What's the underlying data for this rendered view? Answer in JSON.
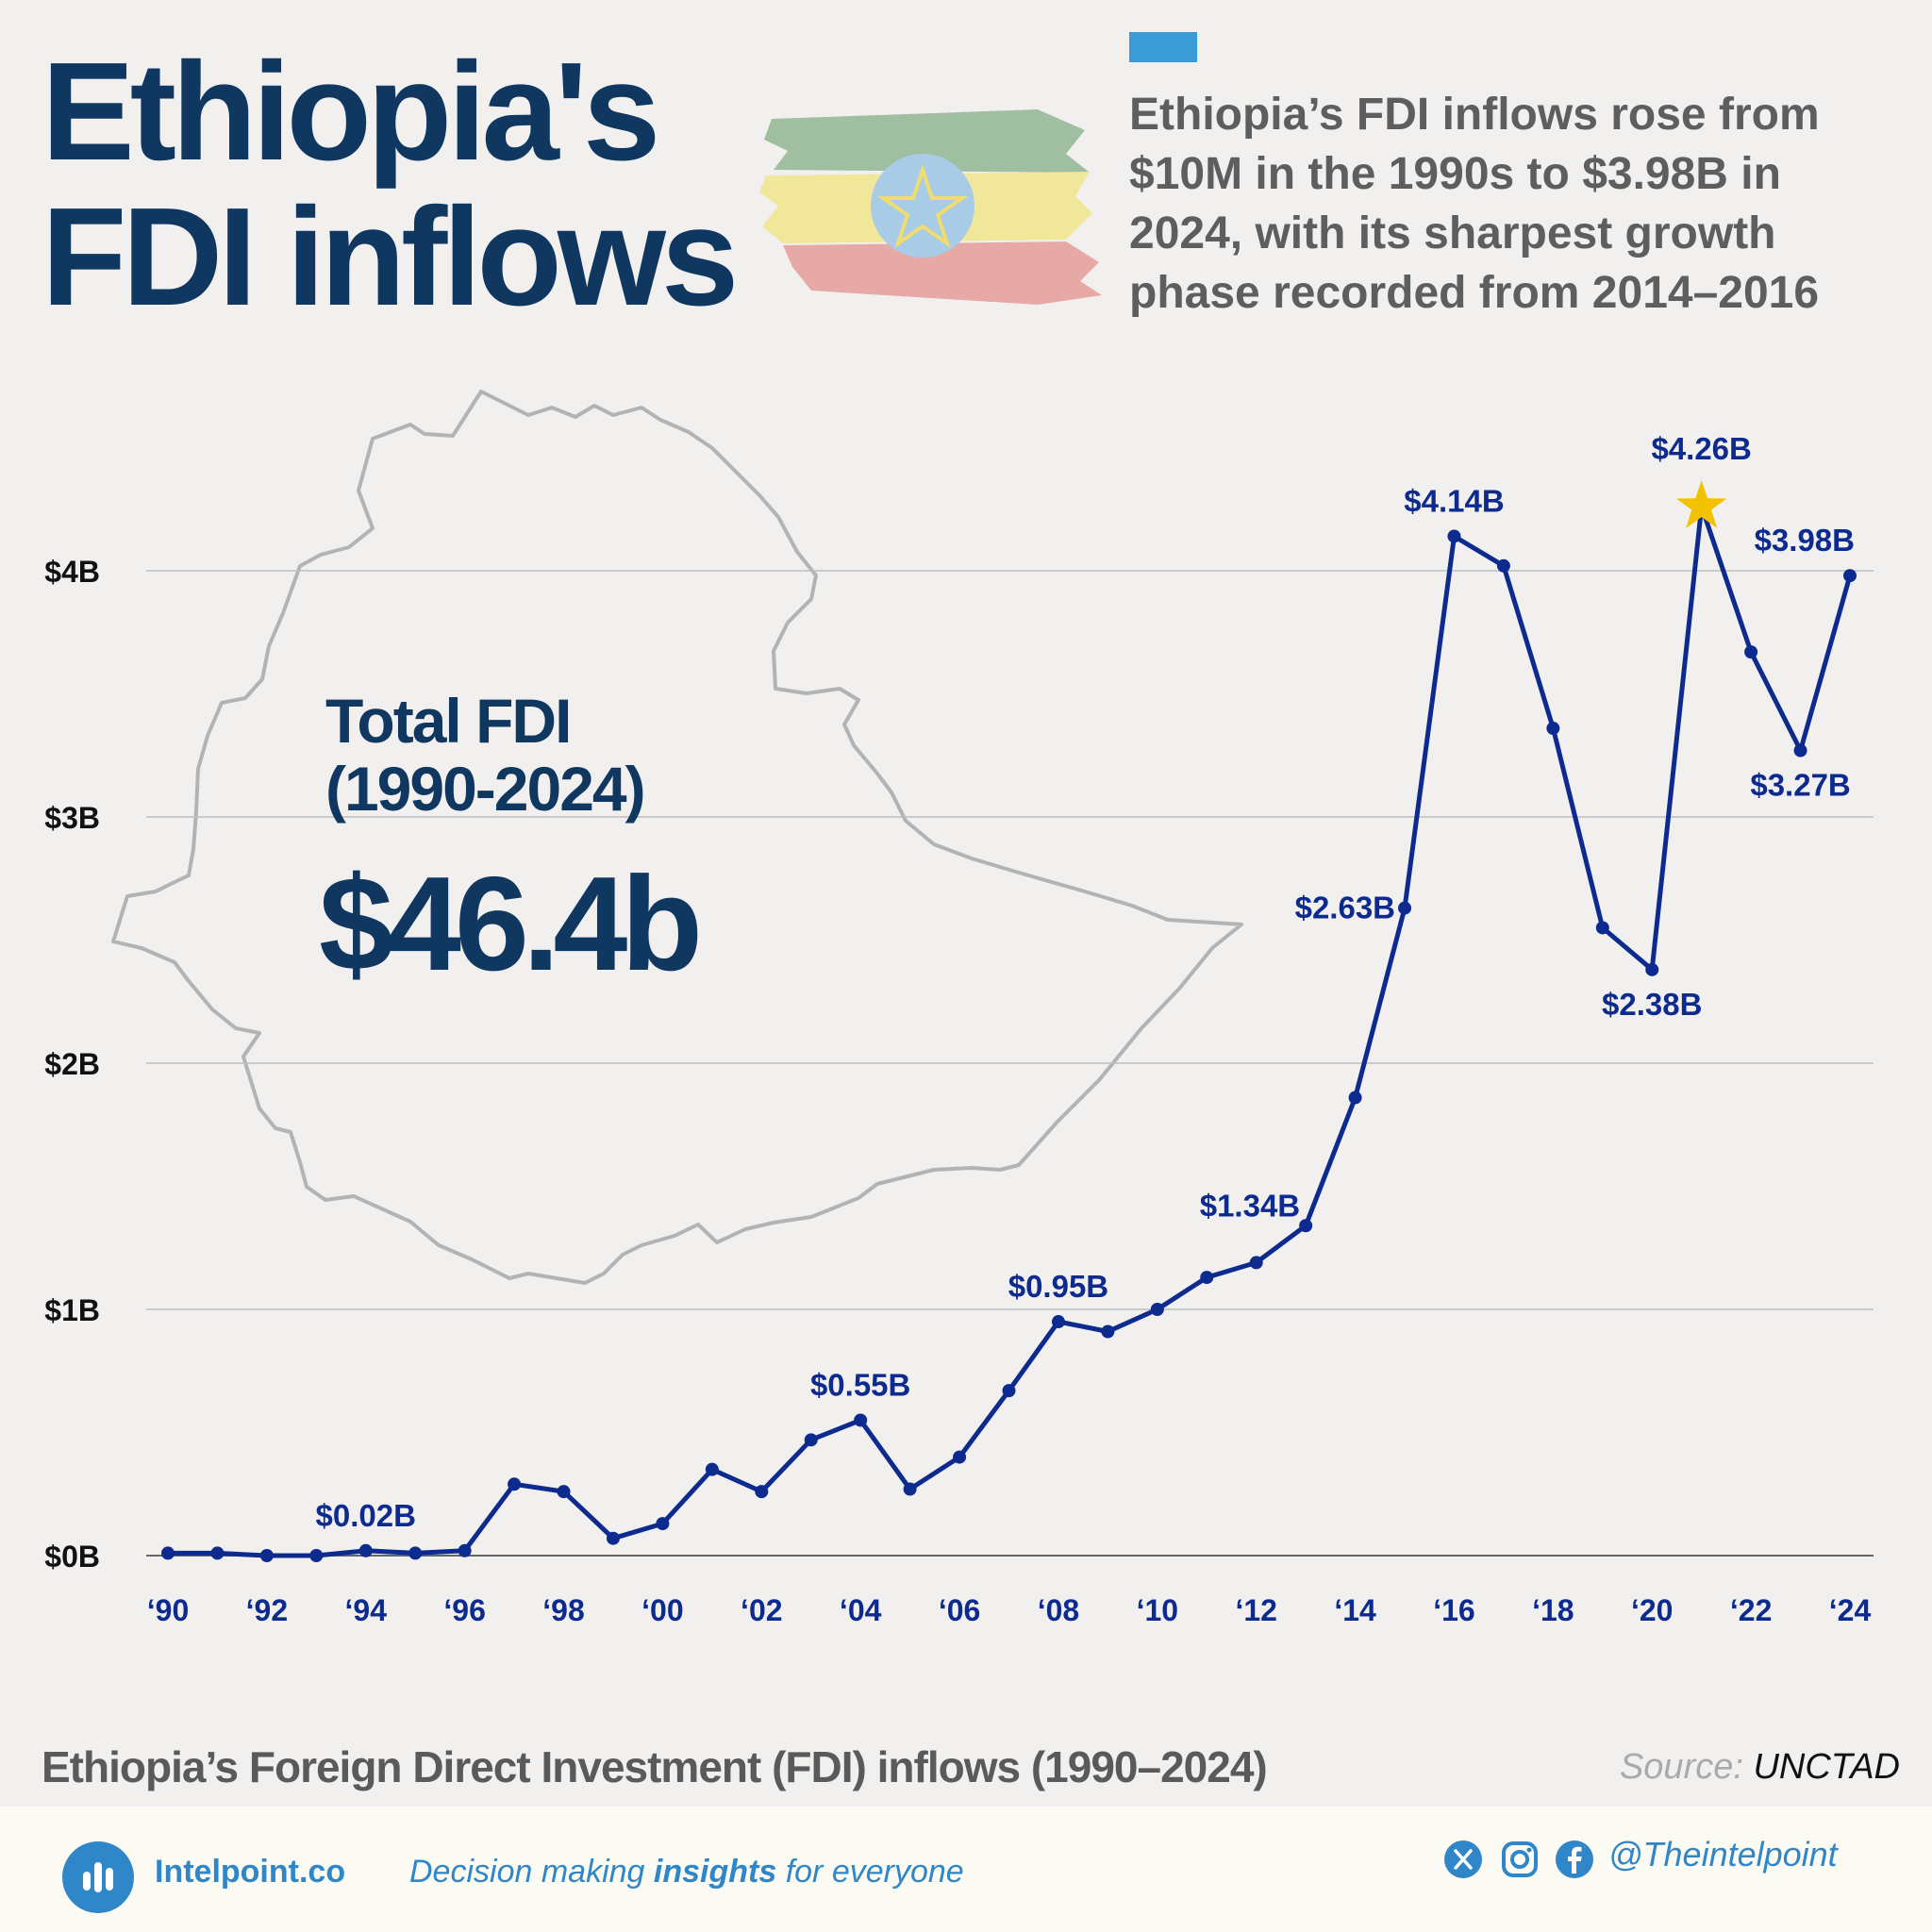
{
  "header": {
    "title_line1": "Ethiopia's",
    "title_line2": "FDI inflows",
    "summary": "Ethiopia’s FDI inflows rose from $10M in the 1990s to $3.98B in 2024, with its sharpest growth phase recorded from 2014–2016"
  },
  "total": {
    "label_line1": "Total FDI",
    "label_line2": "(1990-2024)",
    "value": "$46.4b"
  },
  "chart_data": {
    "type": "line",
    "title": "Ethiopia’s Foreign Direct Investment (FDI) inflows (1990–2024)",
    "ylim": [
      0,
      4.5
    ],
    "yticks": [
      {
        "value": 0,
        "label": "$0B"
      },
      {
        "value": 1,
        "label": "$1B"
      },
      {
        "value": 2,
        "label": "$2B"
      },
      {
        "value": 3,
        "label": "$3B"
      },
      {
        "value": 4,
        "label": "$4B"
      }
    ],
    "grid": true,
    "x": [
      1990,
      1991,
      1992,
      1993,
      1994,
      1995,
      1996,
      1997,
      1998,
      1999,
      2000,
      2001,
      2002,
      2003,
      2004,
      2005,
      2006,
      2007,
      2008,
      2009,
      2010,
      2011,
      2012,
      2013,
      2014,
      2015,
      2016,
      2017,
      2018,
      2019,
      2020,
      2021,
      2022,
      2023,
      2024
    ],
    "xtick_labels": [
      "‘90",
      "‘92",
      "‘94",
      "‘96",
      "‘98",
      "‘00",
      "‘02",
      "‘04",
      "‘06",
      "‘08",
      "‘10",
      "‘12",
      "‘14",
      "‘16",
      "‘18",
      "‘20",
      "‘22",
      "‘24"
    ],
    "xtick_years": [
      1990,
      1992,
      1994,
      1996,
      1998,
      2000,
      2002,
      2004,
      2006,
      2008,
      2010,
      2012,
      2014,
      2016,
      2018,
      2020,
      2022,
      2024
    ],
    "series": [
      {
        "values": [
          0.01,
          0.01,
          0.0,
          0.0,
          0.02,
          0.01,
          0.02,
          0.29,
          0.26,
          0.07,
          0.13,
          0.35,
          0.26,
          0.47,
          0.55,
          0.27,
          0.4,
          0.67,
          0.95,
          0.91,
          1.0,
          1.13,
          1.19,
          1.34,
          1.86,
          2.63,
          4.14,
          4.02,
          3.36,
          2.55,
          2.38,
          4.26,
          3.67,
          3.27,
          3.98
        ],
        "color": "#0d2a8f"
      }
    ],
    "annotations": [
      {
        "year": 1994,
        "value": 0.02,
        "label": "$0.02B",
        "pos": "above"
      },
      {
        "year": 2004,
        "value": 0.55,
        "label": "$0.55B",
        "pos": "above"
      },
      {
        "year": 2008,
        "value": 0.95,
        "label": "$0.95B",
        "pos": "above"
      },
      {
        "year": 2013,
        "value": 1.34,
        "label": "$1.34B",
        "pos": "above-left"
      },
      {
        "year": 2015,
        "value": 2.63,
        "label": "$2.63B",
        "pos": "left"
      },
      {
        "year": 2016,
        "value": 4.14,
        "label": "$4.14B",
        "pos": "above"
      },
      {
        "year": 2020,
        "value": 2.38,
        "label": "$2.38B",
        "pos": "below"
      },
      {
        "year": 2021,
        "value": 4.26,
        "label": "$4.26B",
        "pos": "above-star"
      },
      {
        "year": 2023,
        "value": 3.27,
        "label": "$3.27B",
        "pos": "below"
      },
      {
        "year": 2024,
        "value": 3.98,
        "label": "$3.98B",
        "pos": "above"
      }
    ],
    "highlight": {
      "year": 2021,
      "marker": "star",
      "color": "#f2c200"
    }
  },
  "source": {
    "prefix": "Source:",
    "name": "UNCTAD"
  },
  "footer": {
    "brand": "Intelpoint.co",
    "tagline_pre": "Decision making",
    "tagline_bold": "insights",
    "tagline_post": "for everyone",
    "handle": "@Theintelpoint",
    "icons": [
      "x-icon",
      "instagram-icon",
      "facebook-icon"
    ]
  },
  "colors": {
    "title": "#0f3760",
    "series": "#0d2a8f",
    "accent": "#3b9bd6",
    "star": "#f2c200",
    "footer_text": "#2f86c8"
  }
}
